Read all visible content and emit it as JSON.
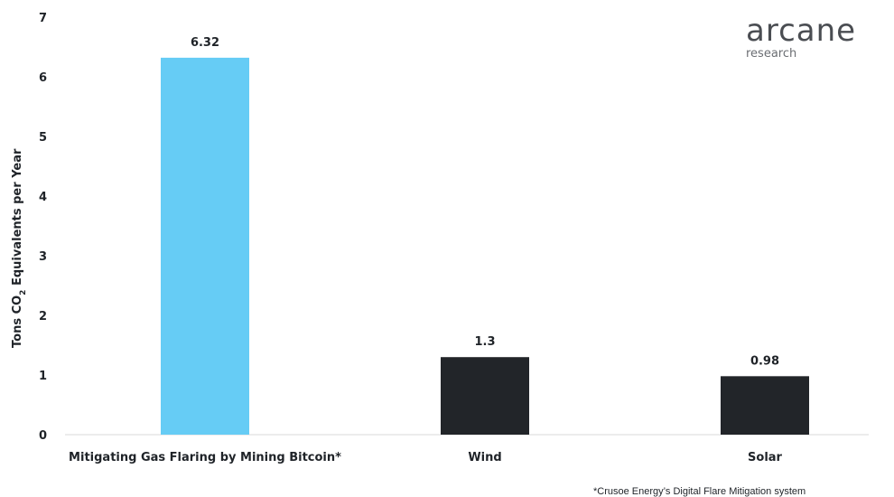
{
  "chart_data": {
    "type": "bar",
    "categories": [
      "Mitigating Gas Flaring by Mining Bitcoin*",
      "Wind",
      "Solar"
    ],
    "values": [
      6.32,
      1.3,
      0.98
    ],
    "value_labels": [
      "6.32",
      "1.3",
      "0.98"
    ],
    "ylabel": "Tons CO",
    "ylabel_subscript": "2",
    "ylabel_suffix": " Equivalents per Year",
    "ylim": [
      0,
      7
    ],
    "yticks": [
      0,
      1,
      2,
      3,
      4,
      5,
      6,
      7
    ],
    "bar_colors": [
      "#66ccf5",
      "#222529",
      "#222529"
    ],
    "grid": false,
    "footnote": "*Crusoe Energy’s Digital Flare Mitigation system"
  },
  "logo": {
    "name": "arcane",
    "subtitle": "research"
  }
}
